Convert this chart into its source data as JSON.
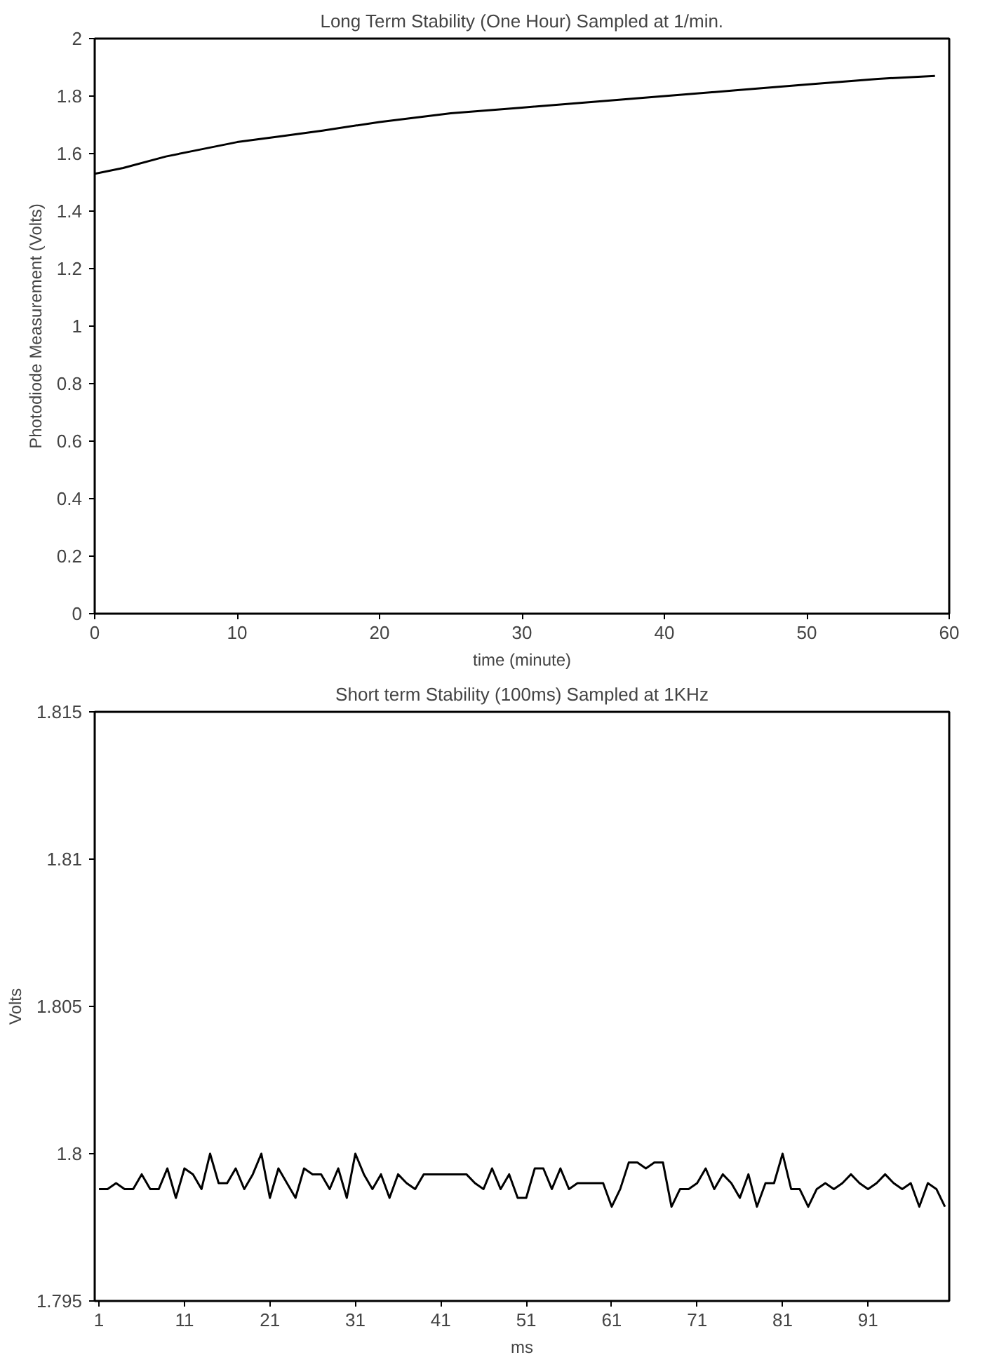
{
  "chart_data": [
    {
      "type": "line",
      "title": "Long Term Stability (One Hour) Sampled at 1/min.",
      "xlabel": "time (minute)",
      "ylabel": "Photodiode Measurement (Volts)",
      "x": [
        0,
        2,
        5,
        7,
        10,
        13,
        16,
        20,
        25,
        30,
        35,
        40,
        45,
        50,
        55,
        59
      ],
      "series": [
        {
          "color": "#000000",
          "values": [
            1.53,
            1.55,
            1.59,
            1.61,
            1.64,
            1.66,
            1.68,
            1.71,
            1.74,
            1.76,
            1.78,
            1.8,
            1.82,
            1.84,
            1.86,
            1.87
          ]
        }
      ],
      "xlim": [
        0,
        60
      ],
      "xticks": [
        0,
        10,
        20,
        30,
        40,
        50,
        60
      ],
      "ylim": [
        0,
        2
      ],
      "yticks": [
        0,
        0.2,
        0.4,
        0.6,
        0.8,
        1,
        1.2,
        1.4,
        1.6,
        1.8,
        2
      ]
    },
    {
      "type": "line",
      "title": "Short term Stability (100ms) Sampled at 1KHz",
      "xlabel": "ms",
      "ylabel": "Volts",
      "x": [
        1,
        2,
        3,
        4,
        5,
        6,
        7,
        8,
        9,
        10,
        11,
        12,
        13,
        14,
        15,
        16,
        17,
        18,
        19,
        20,
        21,
        22,
        23,
        24,
        25,
        26,
        27,
        28,
        29,
        30,
        31,
        32,
        33,
        34,
        35,
        36,
        37,
        38,
        39,
        40,
        41,
        42,
        43,
        44,
        45,
        46,
        47,
        48,
        49,
        50,
        51,
        52,
        53,
        54,
        55,
        56,
        57,
        58,
        59,
        60,
        61,
        62,
        63,
        64,
        65,
        66,
        67,
        68,
        69,
        70,
        71,
        72,
        73,
        74,
        75,
        76,
        77,
        78,
        79,
        80,
        81,
        82,
        83,
        84,
        85,
        86,
        87,
        88,
        89,
        90,
        91,
        92,
        93,
        94,
        95,
        96,
        97,
        98,
        99,
        100
      ],
      "series": [
        {
          "color": "#000000",
          "values": [
            1.7988,
            1.7988,
            1.799,
            1.7988,
            1.7988,
            1.7993,
            1.7988,
            1.7988,
            1.7995,
            1.7985,
            1.7995,
            1.7993,
            1.7988,
            1.8,
            1.799,
            1.799,
            1.7995,
            1.7988,
            1.7993,
            1.8,
            1.7985,
            1.7995,
            1.799,
            1.7985,
            1.7995,
            1.7993,
            1.7993,
            1.7988,
            1.7995,
            1.7985,
            1.8,
            1.7993,
            1.7988,
            1.7993,
            1.7985,
            1.7993,
            1.799,
            1.7988,
            1.7993,
            1.7993,
            1.7993,
            1.7993,
            1.7993,
            1.7993,
            1.799,
            1.7988,
            1.7995,
            1.7988,
            1.7993,
            1.7985,
            1.7985,
            1.7995,
            1.7995,
            1.7988,
            1.7995,
            1.7988,
            1.799,
            1.799,
            1.799,
            1.799,
            1.7982,
            1.7988,
            1.7997,
            1.7997,
            1.7995,
            1.7997,
            1.7997,
            1.7982,
            1.7988,
            1.7988,
            1.799,
            1.7995,
            1.7988,
            1.7993,
            1.799,
            1.7985,
            1.7993,
            1.7982,
            1.799,
            1.799,
            1.8,
            1.7988,
            1.7988,
            1.7982,
            1.7988,
            1.799,
            1.7988,
            1.799,
            1.7993,
            1.799,
            1.7988,
            1.799,
            1.7993,
            1.799,
            1.7988,
            1.799,
            1.7982,
            1.799,
            1.7988,
            1.7982
          ]
        }
      ],
      "xlim": [
        0.5,
        100.5
      ],
      "xticks": [
        1,
        11,
        21,
        31,
        41,
        51,
        61,
        71,
        81,
        91
      ],
      "ylim": [
        1.795,
        1.815
      ],
      "yticks": [
        1.795,
        1.8,
        1.805,
        1.81,
        1.815
      ]
    }
  ]
}
